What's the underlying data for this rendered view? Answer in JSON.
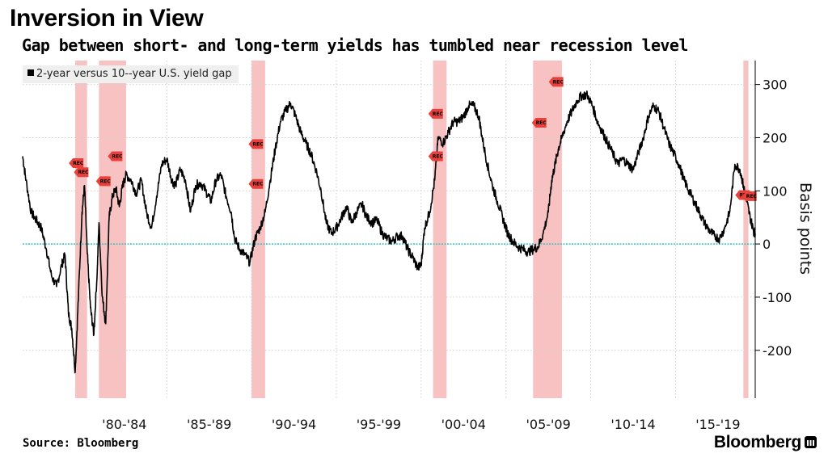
{
  "title": "Inversion in View",
  "subtitle": "Gap between short- and long-term yields has tumbled near recession level",
  "legend": {
    "label": "2-year versus 10--year U.S. yield gap"
  },
  "source": "Source: Bloomberg",
  "brand": "Bloomberg",
  "colors": {
    "line": "#000000",
    "zero_line": "#2ec4c8",
    "recession": "#f7b7b7",
    "rec_marker": "#e8403a",
    "grid": "#cfcfcf"
  },
  "chart_data": {
    "type": "line",
    "title": "Inversion in View",
    "subtitle": "Gap between short- and long-term yields has tumbled near recession level",
    "ylabel": "Basis points",
    "xlabel": "",
    "xlim": [
      1976.5,
      2019.7
    ],
    "ylim": [
      -290,
      345
    ],
    "yticks": [
      300,
      200,
      100,
      0,
      -100,
      -200
    ],
    "ytick_labels": [
      "300",
      "200",
      "100",
      "0",
      "-100",
      "-200"
    ],
    "xtick_labels": [
      {
        "label": "'80-'84",
        "x": 1982.5
      },
      {
        "label": "'85-'89",
        "x": 1987.5
      },
      {
        "label": "'90-'94",
        "x": 1992.5
      },
      {
        "label": "'95-'99",
        "x": 1997.5
      },
      {
        "label": "'00-'04",
        "x": 2002.5
      },
      {
        "label": "'05-'09",
        "x": 2007.5
      },
      {
        "label": "'10-'14",
        "x": 2012.5
      },
      {
        "label": "'15-'19",
        "x": 2017.5
      }
    ],
    "vgrid_years": [
      1980,
      1985,
      1990,
      1995,
      2000,
      2005,
      2010,
      2015
    ],
    "recessions": [
      [
        1979.6,
        1980.3
      ],
      [
        1981.0,
        1982.6
      ],
      [
        1990.0,
        1990.8
      ],
      [
        2000.7,
        2001.5
      ],
      [
        2006.6,
        2008.3
      ],
      [
        2019.0,
        2019.3
      ]
    ],
    "rec_markers": [
      {
        "x": 1979.7,
        "y": 152
      },
      {
        "x": 1980.0,
        "y": 135
      },
      {
        "x": 1981.3,
        "y": 118
      },
      {
        "x": 1982.0,
        "y": 165
      },
      {
        "x": 1990.3,
        "y": 188
      },
      {
        "x": 1990.3,
        "y": 113
      },
      {
        "x": 2000.9,
        "y": 245
      },
      {
        "x": 2000.9,
        "y": 165
      },
      {
        "x": 2007.0,
        "y": 228
      },
      {
        "x": 2008.0,
        "y": 305
      },
      {
        "x": 2019.0,
        "y": 92
      },
      {
        "x": 2019.4,
        "y": 90
      }
    ],
    "rec_label": "REC",
    "series": [
      {
        "name": "2-year versus 10--year U.S. yield gap",
        "x": [
          1976.5,
          1976.7,
          1977.0,
          1977.3,
          1977.6,
          1977.9,
          1978.2,
          1978.5,
          1978.8,
          1979.0,
          1979.2,
          1979.4,
          1979.6,
          1979.8,
          1980.0,
          1980.15,
          1980.3,
          1980.5,
          1980.7,
          1980.9,
          1981.0,
          1981.2,
          1981.4,
          1981.6,
          1981.8,
          1982.0,
          1982.2,
          1982.4,
          1982.6,
          1982.9,
          1983.2,
          1983.5,
          1983.8,
          1984.1,
          1984.4,
          1984.7,
          1985.0,
          1985.3,
          1985.5,
          1985.8,
          1986.1,
          1986.4,
          1986.7,
          1987.0,
          1987.3,
          1987.6,
          1987.9,
          1988.2,
          1988.5,
          1988.8,
          1989.0,
          1989.3,
          1989.6,
          1989.9,
          1990.2,
          1990.5,
          1990.8,
          1991.1,
          1991.4,
          1991.7,
          1992.0,
          1992.3,
          1992.6,
          1992.9,
          1993.2,
          1993.5,
          1993.8,
          1994.1,
          1994.4,
          1994.7,
          1995.0,
          1995.3,
          1995.6,
          1995.9,
          1996.2,
          1996.5,
          1996.8,
          1997.1,
          1997.4,
          1997.7,
          1998.0,
          1998.3,
          1998.6,
          1998.9,
          1999.2,
          1999.5,
          1999.8,
          2000.0,
          2000.2,
          2000.5,
          2000.8,
          2001.0,
          2001.3,
          2001.6,
          2001.9,
          2002.2,
          2002.5,
          2002.8,
          2003.1,
          2003.4,
          2003.6,
          2003.9,
          2004.2,
          2004.5,
          2004.8,
          2005.1,
          2005.4,
          2005.7,
          2006.0,
          2006.3,
          2006.6,
          2006.9,
          2007.2,
          2007.5,
          2007.7,
          2007.9,
          2008.1,
          2008.3,
          2008.6,
          2008.9,
          2009.2,
          2009.5,
          2009.8,
          2010.1,
          2010.4,
          2010.7,
          2011.0,
          2011.3,
          2011.6,
          2011.9,
          2012.2,
          2012.5,
          2012.8,
          2013.1,
          2013.4,
          2013.7,
          2014.0,
          2014.3,
          2014.6,
          2014.9,
          2015.2,
          2015.5,
          2015.8,
          2016.1,
          2016.4,
          2016.7,
          2017.0,
          2017.3,
          2017.6,
          2017.9,
          2018.2,
          2018.5,
          2018.8,
          2019.0,
          2019.2,
          2019.4,
          2019.6,
          2019.7
        ],
        "values": [
          165,
          120,
          60,
          45,
          30,
          -10,
          -60,
          -80,
          -40,
          -20,
          -130,
          -160,
          -240,
          -90,
          60,
          110,
          -10,
          -120,
          -170,
          -50,
          40,
          -100,
          -150,
          50,
          90,
          105,
          70,
          110,
          130,
          120,
          95,
          120,
          60,
          30,
          90,
          150,
          160,
          120,
          110,
          140,
          120,
          60,
          110,
          115,
          100,
          80,
          120,
          130,
          90,
          60,
          10,
          -10,
          -20,
          -35,
          10,
          30,
          60,
          120,
          180,
          230,
          250,
          265,
          240,
          210,
          190,
          170,
          140,
          100,
          40,
          20,
          30,
          50,
          70,
          40,
          60,
          75,
          50,
          40,
          45,
          20,
          10,
          5,
          15,
          15,
          -10,
          -25,
          -45,
          -40,
          30,
          60,
          120,
          200,
          190,
          210,
          230,
          230,
          240,
          260,
          260,
          240,
          200,
          150,
          110,
          80,
          50,
          20,
          5,
          -5,
          -10,
          -15,
          -10,
          -5,
          20,
          60,
          120,
          150,
          180,
          200,
          230,
          250,
          270,
          280,
          280,
          260,
          230,
          210,
          190,
          170,
          150,
          160,
          150,
          140,
          170,
          200,
          240,
          260,
          250,
          220,
          190,
          170,
          150,
          120,
          100,
          80,
          60,
          40,
          25,
          15,
          10,
          30,
          60,
          150,
          140,
          110,
          80,
          50,
          25,
          20
        ]
      }
    ]
  }
}
